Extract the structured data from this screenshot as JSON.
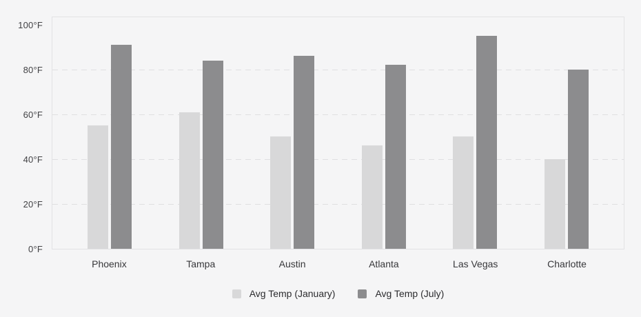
{
  "colors": {
    "background": "#f5f5f6",
    "plot_border": "#e2e2e4",
    "gridline": "#dfdfe1",
    "axis_tick_text": "#414144",
    "category_text": "#37373a",
    "legend_text": "#2b2b2e"
  },
  "chart_data": {
    "type": "bar",
    "title": "",
    "categories": [
      "Phoenix",
      "Tampa",
      "Austin",
      "Atlanta",
      "Las Vegas",
      "Charlotte"
    ],
    "series": [
      {
        "name": "Avg Temp (January)",
        "values": [
          55,
          61,
          50,
          46,
          50,
          40
        ],
        "color": "#d8d8d9"
      },
      {
        "name": "Avg Temp (July)",
        "values": [
          91,
          84,
          86,
          82,
          95,
          80
        ],
        "color": "#8c8c8e"
      }
    ],
    "unit": "°F",
    "ylabel": "",
    "xlabel": "",
    "y_ticks": [
      {
        "value": 0,
        "label": "0°F"
      },
      {
        "value": 20,
        "label": "20°F"
      },
      {
        "value": 40,
        "label": "40°F"
      },
      {
        "value": 60,
        "label": "60°F"
      },
      {
        "value": 80,
        "label": "80°F"
      },
      {
        "value": 100,
        "label": "100°F"
      }
    ],
    "gridline_values": [
      20,
      40,
      60,
      80
    ],
    "ylim": [
      0,
      104
    ],
    "grid": "horizontal-dashed",
    "legend_position": "bottom-center"
  }
}
